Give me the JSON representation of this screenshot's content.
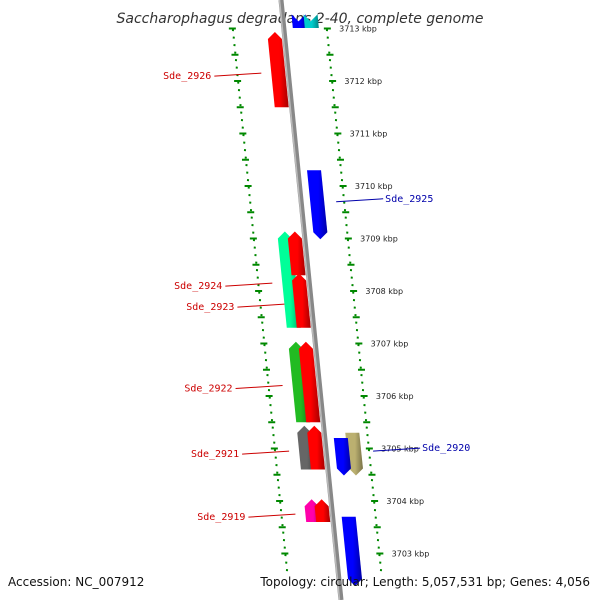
{
  "title": "Saccharophagus degradans 2-40, complete genome",
  "footer": {
    "accession": "Accession: NC_007912",
    "summary": "Topology: circular; Length: 5,057,531 bp; Genes: 4,056"
  },
  "scale_labels": [
    "3713 kbp",
    "3712 kbp",
    "3711 kbp",
    "3710 kbp",
    "3709 kbp",
    "3708 kbp",
    "3707 kbp",
    "3706 kbp",
    "3705 kbp",
    "3704 kbp",
    "3703 kbp"
  ],
  "genes": [
    {
      "label": "",
      "color": "#0000ff",
      "strand": "minus",
      "ring": "inner",
      "start": 3713.6,
      "end": 3713.25
    },
    {
      "label": "",
      "color": "#00cccc",
      "strand": "minus",
      "ring": "inner2",
      "start": 3713.6,
      "end": 3713.25
    },
    {
      "label": "Sde_2926",
      "color": "#ff0000",
      "strand": "plus",
      "ring": "outer",
      "start": 3711.5,
      "end": 3712.8
    },
    {
      "label": "Sde_2925",
      "color": "#0000ff",
      "strand": "minus",
      "ring": "inner",
      "start": 3710.3,
      "end": 3709.1
    },
    {
      "label": "Sde_2924",
      "color": "#00ff99",
      "strand": "plus",
      "ring": "outer2",
      "start": 3707.3,
      "end": 3709.0
    },
    {
      "label": "",
      "color": "#ff0000",
      "strand": "plus",
      "ring": "outer",
      "start": 3708.3,
      "end": 3709.0
    },
    {
      "label": "Sde_2923",
      "color": "#ff0000",
      "strand": "plus",
      "ring": "outer",
      "start": 3707.3,
      "end": 3708.2
    },
    {
      "label": "Sde_2922",
      "color": "#22bb22",
      "strand": "plus",
      "ring": "outer2",
      "start": 3705.5,
      "end": 3706.9
    },
    {
      "label": "",
      "color": "#ff0000",
      "strand": "plus",
      "ring": "outer",
      "start": 3705.5,
      "end": 3706.9
    },
    {
      "label": "Sde_2921",
      "color": "#666666",
      "strand": "plus",
      "ring": "outer2",
      "start": 3704.6,
      "end": 3705.3
    },
    {
      "label": "",
      "color": "#ff0000",
      "strand": "plus",
      "ring": "outer",
      "start": 3704.6,
      "end": 3705.3
    },
    {
      "label": "Sde_2920",
      "color": "#bbb070",
      "strand": "minus",
      "ring": "inner2",
      "start": 3705.3,
      "end": 3704.6
    },
    {
      "label": "",
      "color": "#0000ff",
      "strand": "minus",
      "ring": "inner",
      "start": 3705.2,
      "end": 3704.6
    },
    {
      "label": "Sde_2919",
      "color": "#ff00aa",
      "strand": "plus",
      "ring": "outer2",
      "start": 3703.6,
      "end": 3703.9
    },
    {
      "label": "",
      "color": "#ff0000",
      "strand": "plus",
      "ring": "outer",
      "start": 3703.6,
      "end": 3703.9
    },
    {
      "label": "",
      "color": "#0000ff",
      "strand": "minus",
      "ring": "inner",
      "start": 3703.7,
      "end": 3702.2
    }
  ],
  "colors": {
    "backbone": "#888888",
    "tick": "#008800",
    "red_label": "#cc0000",
    "blue_label": "#0000aa"
  }
}
